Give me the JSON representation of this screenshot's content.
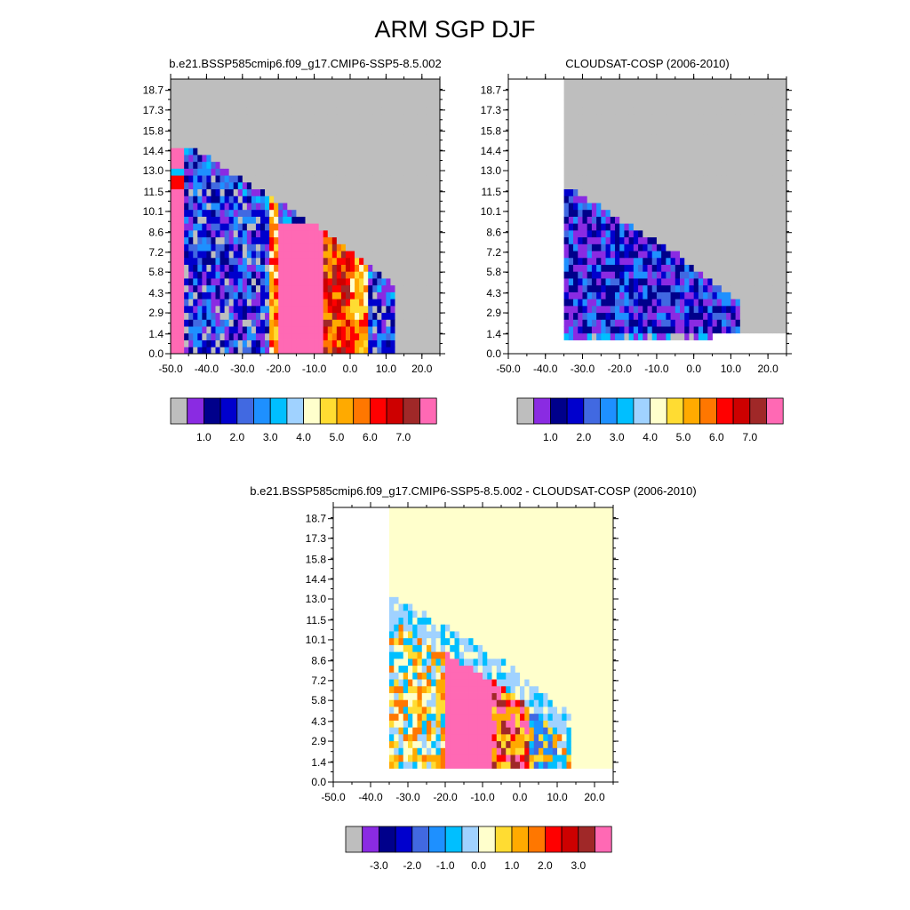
{
  "title": "ARM SGP DJF",
  "colorbar_colors": [
    "#bebebe",
    "#8a2be2",
    "#00008b",
    "#0000cd",
    "#4169e1",
    "#1e90ff",
    "#00bfff",
    "#a0d2ff",
    "#ffffcc",
    "#ffdc32",
    "#ffaa00",
    "#ff7700",
    "#ff0000",
    "#cd0000",
    "#a02828",
    "#ff69b4"
  ],
  "chart_data": [
    {
      "type": "heatmap",
      "title": "b.e21.BSSP585cmip6.f09_g17.CMIP6-SSP5-8.5.002",
      "x_ticks": [
        "-50.0",
        "-40.0",
        "-30.0",
        "-20.0",
        "-10.0",
        "0.0",
        "10.0",
        "20.0"
      ],
      "y_ticks": [
        "0.0",
        "1.4",
        "2.9",
        "4.3",
        "5.8",
        "7.2",
        "8.6",
        "10.1",
        "11.5",
        "13.0",
        "14.4",
        "15.8",
        "17.3",
        "18.7"
      ],
      "xlim": [
        -50,
        25
      ],
      "ylim": [
        0,
        19.5
      ],
      "colorbar_labels": [
        "1.0",
        "2.0",
        "3.0",
        "4.0",
        "5.0",
        "6.0",
        "7.0"
      ],
      "rows": [
        "--------------------------------------------------------------",
        "--------------------------------------------------------------",
        "--------------------------------------------------------------",
        "--------------------------------------------------------------",
        "--------------------------------------------------------------",
        "--------------------------------------------------------------",
        "--------------------------------------------------------------",
        "--------------------------------------------------------------",
        "2-------------------------------------------------------------",
        "6-------------------------------------------------------------",
        "FE1222-------------------------------------------------------",
        "F332211-----------------------------------------------------",
        "F3255663-----------------------------------------------------",
        "F33556663----------------------------------------------------",
        "F345566672--------------------------------------------------",
        "F3535557AA9--------------------------------------------------",
        "F3323367ABCC-------------------------------------------------",
        "F33243DDDD29------------------------------------------------",
        "F33343DFFFF23------------------------------------------------",
        "F3323EEFFFFE23-----------------------------------------------",
        "F3323DBFFFFE632----------------------------------------------",
        "F32223BFFFFBB72----------------------------------------------",
        "F3312A3FFFFDB73----------------------------------------------",
        "F3322BBFFFFDD73----------------------------------------------",
        "F3333BCFFFFDD74----------------------------------------------",
        "F3323BAFFFFDD74----------------------------------------------",
        "F3333CBFFFFDB84----------------------------------------------",
        "F3333CBDEFFDB84----------------------------------------------",
        "F3322C9CCDDD94-----------------------------------------------",
        "F33335CBDCCCB3-----------------------------------------------",
        "F33332AEEEEEE3-----------------------------------------------",
        "F33326EEEEEEE3-----------------------------------------------"
      ]
    },
    {
      "type": "heatmap",
      "title": "CLOUDSAT-COSP (2006-2010)",
      "x_ticks": [
        "-50.0",
        "-40.0",
        "-30.0",
        "-20.0",
        "-10.0",
        "0.0",
        "10.0",
        "20.0"
      ],
      "y_ticks": [
        "0.0",
        "1.4",
        "2.9",
        "4.3",
        "5.8",
        "7.2",
        "8.6",
        "10.1",
        "11.5",
        "13.0",
        "14.4",
        "15.8",
        "17.3",
        "18.7"
      ],
      "xlim": [
        -50,
        25
      ],
      "ylim": [
        0,
        19.5
      ],
      "colorbar_labels": [
        "1.0",
        "2.0",
        "3.0",
        "4.0",
        "5.0",
        "6.0",
        "7.0"
      ],
      "rows": []
    },
    {
      "type": "heatmap",
      "title": "b.e21.BSSP585cmip6.f09_g17.CMIP6-SSP5-8.5.002 - CLOUDSAT-COSP (2006-2010)",
      "x_ticks": [
        "-50.0",
        "-40.0",
        "-30.0",
        "-20.0",
        "-10.0",
        "0.0",
        "10.0",
        "20.0"
      ],
      "y_ticks": [
        "0.0",
        "1.4",
        "2.9",
        "4.3",
        "5.8",
        "7.2",
        "8.6",
        "10.1",
        "11.5",
        "13.0",
        "14.4",
        "15.8",
        "17.3",
        "18.7"
      ],
      "xlim": [
        -50,
        25
      ],
      "ylim": [
        0,
        19.5
      ],
      "colorbar_labels": [
        "-3.0",
        "-2.0",
        "-1.0",
        "0.0",
        "1.0",
        "2.0",
        "3.0"
      ],
      "rows": []
    }
  ]
}
